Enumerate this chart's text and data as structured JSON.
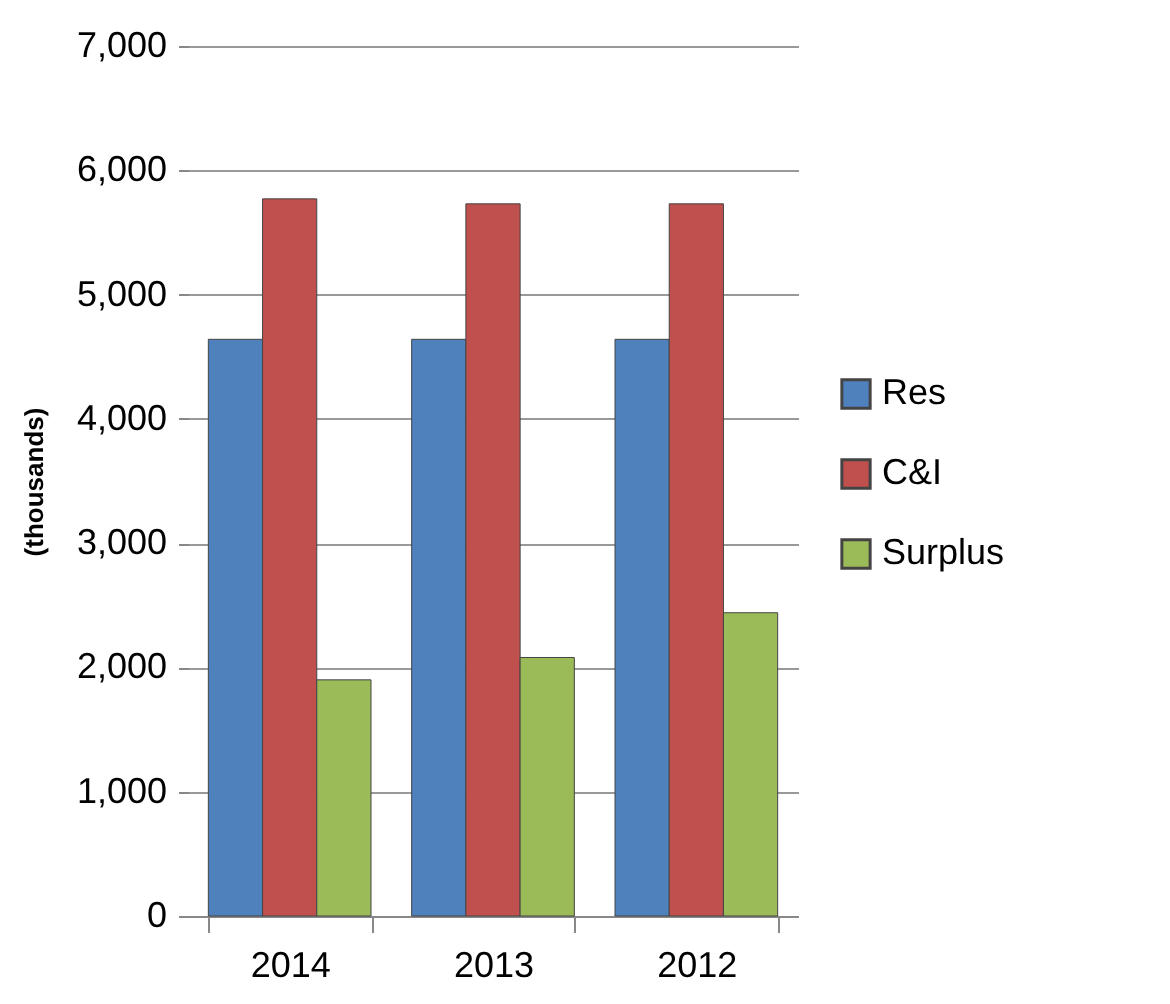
{
  "chart_data": {
    "type": "bar",
    "ylabel": "(thousands)",
    "categories": [
      "2014",
      "2013",
      "2012"
    ],
    "series": [
      {
        "name": "Res",
        "color": "#4f81bd",
        "values": [
          4640,
          4640,
          4640
        ]
      },
      {
        "name": "C&I",
        "color": "#c0504d",
        "values": [
          5770,
          5730,
          5730
        ]
      },
      {
        "name": "Surplus",
        "color": "#9bbb59",
        "values": [
          1900,
          2080,
          2440
        ]
      }
    ],
    "ylim": [
      0,
      7000
    ],
    "yticks": [
      0,
      {
        "value": 1000,
        "label": "1,000"
      },
      {
        "value": 2000,
        "label": "2,000"
      },
      {
        "value": 3000,
        "label": "3,000"
      },
      {
        "value": 4000,
        "label": "4,000"
      },
      {
        "value": 5000,
        "label": "5,000"
      },
      {
        "value": 6000,
        "label": "6,000"
      },
      {
        "value": 7000,
        "label": "7,000"
      }
    ],
    "grid": "y",
    "legend": "right"
  }
}
